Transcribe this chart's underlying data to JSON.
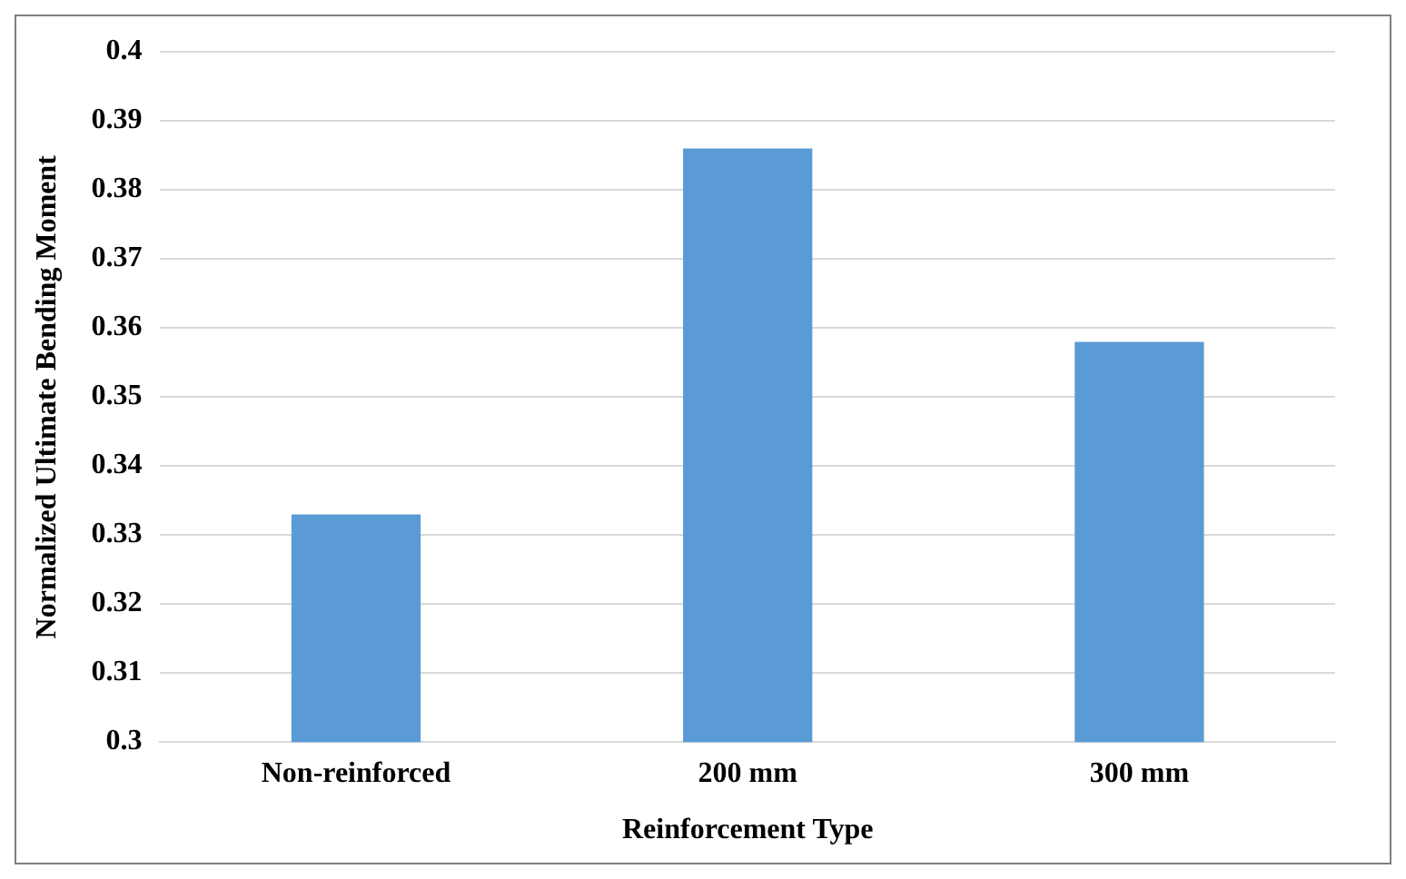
{
  "chart_data": {
    "type": "bar",
    "xlabel": "Reinforcement Type",
    "ylabel": "Normalized Ultimate Bending Moment",
    "categories": [
      "Non-reinforced",
      "200 mm",
      "300 mm"
    ],
    "values": [
      0.333,
      0.386,
      0.358
    ],
    "color": "#5b9bd5",
    "ylim": [
      0.3,
      0.4
    ],
    "yticks": [
      0.3,
      0.31,
      0.32,
      0.33,
      0.34,
      0.35,
      0.36,
      0.37,
      0.38,
      0.39,
      0.4
    ],
    "grid": "y"
  }
}
